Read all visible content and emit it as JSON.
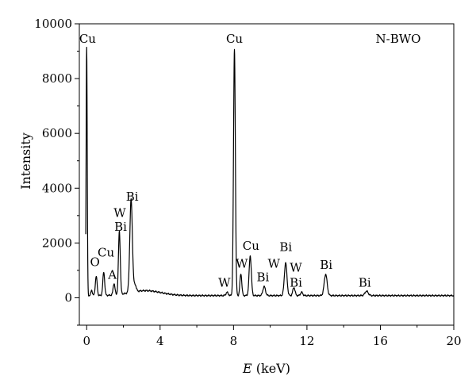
{
  "chart_data": {
    "type": "line",
    "title": "",
    "xlabel": "E (keV)",
    "xlabel_var": "E",
    "xlabel_unit": " (keV)",
    "ylabel": "Intensity",
    "xlim": [
      -0.4,
      20
    ],
    "ylim": [
      -1000,
      10000
    ],
    "x_ticks": [
      0,
      4,
      8,
      12,
      16,
      20
    ],
    "y_ticks": [
      0,
      2000,
      4000,
      6000,
      8000,
      10000
    ],
    "grid": false,
    "legend": {
      "text": "N-BWO",
      "placement": "top-right"
    },
    "line_color": "#000000",
    "baseline": 80,
    "peaks": [
      {
        "x": 0.0,
        "y": 9050,
        "w": 0.03
      },
      {
        "x": 0.27,
        "y": 200,
        "w": 0.04
      },
      {
        "x": 0.52,
        "y": 700,
        "w": 0.05
      },
      {
        "x": 0.93,
        "y": 850,
        "w": 0.05
      },
      {
        "x": 1.49,
        "y": 420,
        "w": 0.05
      },
      {
        "x": 1.78,
        "y": 2300,
        "w": 0.05
      },
      {
        "x": 2.42,
        "y": 3400,
        "w": 0.07
      },
      {
        "x": 2.64,
        "y": 250,
        "w": 0.06
      },
      {
        "x": 7.65,
        "y": 120,
        "w": 0.06
      },
      {
        "x": 8.05,
        "y": 9000,
        "w": 0.05
      },
      {
        "x": 8.4,
        "y": 800,
        "w": 0.05
      },
      {
        "x": 8.91,
        "y": 1450,
        "w": 0.06
      },
      {
        "x": 9.67,
        "y": 330,
        "w": 0.07
      },
      {
        "x": 10.84,
        "y": 1200,
        "w": 0.07
      },
      {
        "x": 11.29,
        "y": 300,
        "w": 0.06
      },
      {
        "x": 11.71,
        "y": 120,
        "w": 0.06
      },
      {
        "x": 13.02,
        "y": 780,
        "w": 0.08
      },
      {
        "x": 15.25,
        "y": 160,
        "w": 0.09
      }
    ],
    "annotations": [
      {
        "text": "Cu",
        "x": 0.05,
        "y": 9300
      },
      {
        "text": "O",
        "x": 0.45,
        "y": 1150
      },
      {
        "text": "Cu",
        "x": 1.05,
        "y": 1500
      },
      {
        "text": "A",
        "x": 1.4,
        "y": 700
      },
      {
        "text": "Bi",
        "x": 1.85,
        "y": 2450
      },
      {
        "text": "W",
        "x": 1.8,
        "y": 2950
      },
      {
        "text": "Bi",
        "x": 2.48,
        "y": 3550
      },
      {
        "text": "Cu",
        "x": 8.05,
        "y": 9300
      },
      {
        "text": "W",
        "x": 7.5,
        "y": 400
      },
      {
        "text": "W",
        "x": 8.45,
        "y": 1100
      },
      {
        "text": "Cu",
        "x": 8.95,
        "y": 1750
      },
      {
        "text": "Bi",
        "x": 9.6,
        "y": 600
      },
      {
        "text": "W",
        "x": 10.2,
        "y": 1100
      },
      {
        "text": "Bi",
        "x": 10.85,
        "y": 1700
      },
      {
        "text": "W",
        "x": 11.4,
        "y": 950
      },
      {
        "text": "Bi",
        "x": 11.4,
        "y": 400
      },
      {
        "text": "Bi",
        "x": 13.05,
        "y": 1050
      },
      {
        "text": "Bi",
        "x": 15.15,
        "y": 400
      }
    ]
  }
}
